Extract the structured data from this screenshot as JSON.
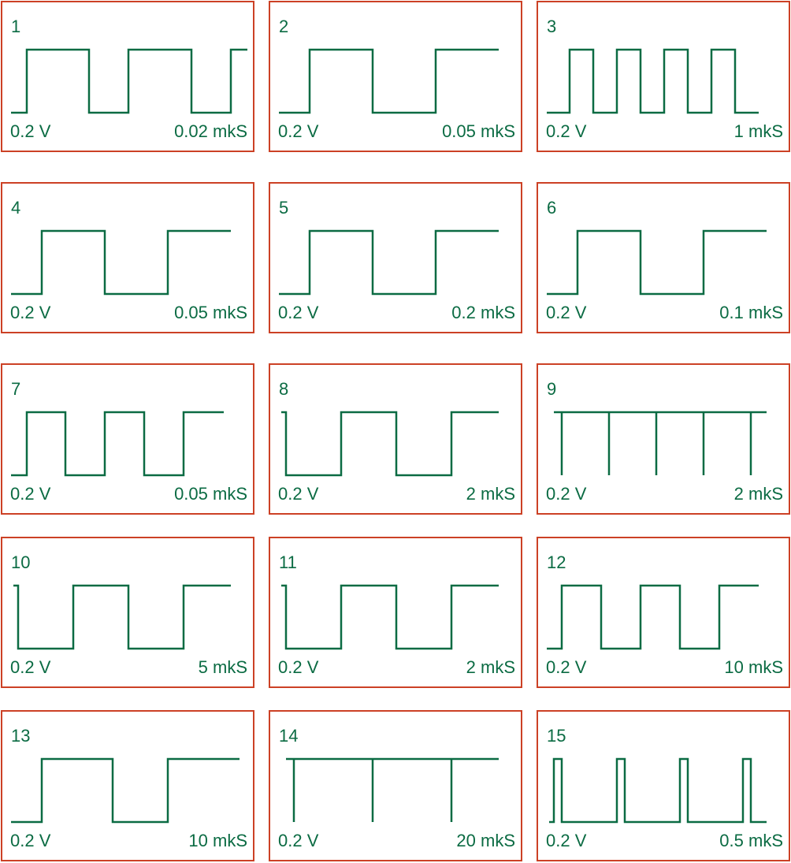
{
  "trace_color": "#0b6b43",
  "border_color": "#cc4125",
  "panels": [
    {
      "number": "1",
      "volts": "0.2 V",
      "time": "0.02 mkS",
      "waveform": "square-wave-3-cycles"
    },
    {
      "number": "2",
      "volts": "0.2 V",
      "time": "0.05 mkS",
      "waveform": "square-wave-1.5-cycles"
    },
    {
      "number": "3",
      "volts": "0.2 V",
      "time": "1 mkS",
      "waveform": "square-wave-4-pulses"
    },
    {
      "number": "4",
      "volts": "0.2 V",
      "time": "0.05 mkS",
      "waveform": "square-wave-1.5-cycles"
    },
    {
      "number": "5",
      "volts": "0.2 V",
      "time": "0.2 mkS",
      "waveform": "square-wave-1.5-cycles"
    },
    {
      "number": "6",
      "volts": "0.2 V",
      "time": "0.1 mkS",
      "waveform": "square-wave-1.5-cycles"
    },
    {
      "number": "7",
      "volts": "0.2 V",
      "time": "0.05 mkS",
      "waveform": "square-wave-2.5-cycles"
    },
    {
      "number": "8",
      "volts": "0.2 V",
      "time": "2 mkS",
      "waveform": "inverted-square-wave"
    },
    {
      "number": "9",
      "volts": "0.2 V",
      "time": "2 mkS",
      "waveform": "negative-spikes"
    },
    {
      "number": "10",
      "volts": "0.2 V",
      "time": "5 mkS",
      "waveform": "inverted-square-wave"
    },
    {
      "number": "11",
      "volts": "0.2 V",
      "time": "2 mkS",
      "waveform": "inverted-square-wave"
    },
    {
      "number": "12",
      "volts": "0.2 V",
      "time": "10 mkS",
      "waveform": "square-wave-2.5-cycles"
    },
    {
      "number": "13",
      "volts": "0.2 V",
      "time": "10 mkS",
      "waveform": "square-wave-1.5-cycles"
    },
    {
      "number": "14",
      "volts": "0.2 V",
      "time": "20 mkS",
      "waveform": "negative-spikes"
    },
    {
      "number": "15",
      "volts": "0.2 V",
      "time": "0.5 mkS",
      "waveform": "narrow-positive-pulses"
    }
  ]
}
